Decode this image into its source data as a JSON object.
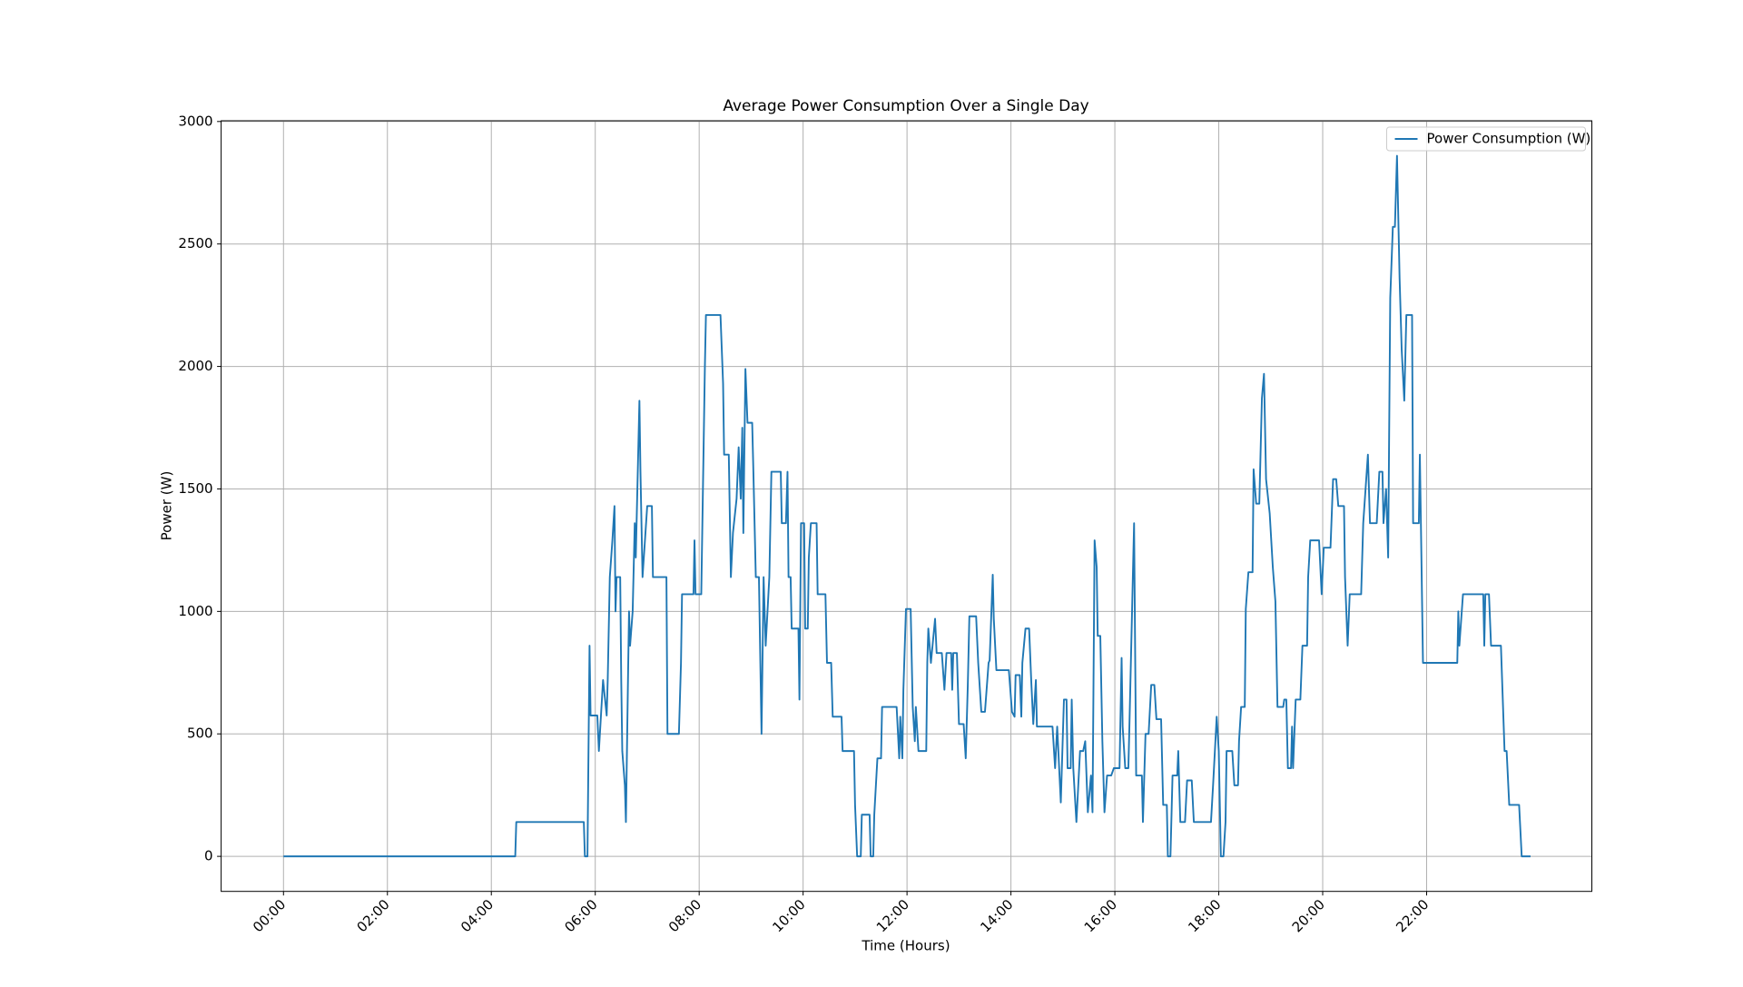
{
  "chart_data": {
    "type": "line",
    "title": "Average Power Consumption Over a Single Day",
    "x_label": "Time (Hours)",
    "y_label": "Power (W)",
    "xlim": [
      -1.2,
      25.18
    ],
    "ylim": [
      -143,
      3003
    ],
    "xticks": [
      {
        "value": 0,
        "label": "00:00"
      },
      {
        "value": 2,
        "label": "02:00"
      },
      {
        "value": 4,
        "label": "04:00"
      },
      {
        "value": 6,
        "label": "06:00"
      },
      {
        "value": 8,
        "label": "08:00"
      },
      {
        "value": 10,
        "label": "10:00"
      },
      {
        "value": 12,
        "label": "12:00"
      },
      {
        "value": 14,
        "label": "14:00"
      },
      {
        "value": 16,
        "label": "16:00"
      },
      {
        "value": 18,
        "label": "18:00"
      },
      {
        "value": 20,
        "label": "20:00"
      },
      {
        "value": 22,
        "label": "22:00"
      }
    ],
    "yticks": [
      0,
      500,
      1000,
      1500,
      2000,
      2500,
      3000
    ],
    "grid": true,
    "legend": "upper right",
    "series": [
      {
        "name": "Power Consumption (W)",
        "color": "#1f77b4",
        "x": [
          0,
          4.46,
          4.48,
          5.78,
          5.8,
          5.85,
          5.87,
          5.89,
          5.91,
          6.04,
          6.07,
          6.11,
          6.15,
          6.22,
          6.24,
          6.28,
          6.33,
          6.37,
          6.39,
          6.41,
          6.48,
          6.5,
          6.52,
          6.57,
          6.59,
          6.63,
          6.65,
          6.67,
          6.72,
          6.76,
          6.78,
          6.85,
          6.87,
          6.91,
          7.0,
          7.09,
          7.11,
          7.37,
          7.39,
          7.61,
          7.65,
          7.67,
          7.89,
          7.91,
          7.93,
          8.04,
          8.11,
          8.13,
          8.41,
          8.46,
          8.48,
          8.57,
          8.61,
          8.65,
          8.72,
          8.76,
          8.8,
          8.83,
          8.85,
          8.89,
          8.93,
          9.02,
          9.04,
          9.09,
          9.15,
          9.2,
          9.24,
          9.28,
          9.35,
          9.39,
          9.57,
          9.59,
          9.67,
          9.7,
          9.72,
          9.76,
          9.78,
          9.91,
          9.93,
          9.96,
          10.02,
          10.04,
          10.09,
          10.11,
          10.15,
          10.26,
          10.28,
          10.43,
          10.46,
          10.54,
          10.57,
          10.74,
          10.76,
          10.98,
          11.0,
          11.04,
          11.11,
          11.13,
          11.28,
          11.3,
          11.35,
          11.37,
          11.43,
          11.5,
          11.52,
          11.8,
          11.85,
          11.87,
          11.91,
          11.93,
          11.98,
          12.07,
          12.11,
          12.15,
          12.17,
          12.22,
          12.37,
          12.39,
          12.41,
          12.46,
          12.54,
          12.57,
          12.67,
          12.72,
          12.76,
          12.85,
          12.87,
          12.89,
          12.96,
          13.0,
          13.09,
          13.13,
          13.17,
          13.2,
          13.33,
          13.37,
          13.43,
          13.5,
          13.57,
          13.59,
          13.65,
          13.67,
          13.72,
          13.96,
          14.02,
          14.07,
          14.09,
          14.17,
          14.2,
          14.22,
          14.28,
          14.35,
          14.39,
          14.43,
          14.48,
          14.5,
          14.8,
          14.85,
          14.89,
          14.96,
          15.02,
          15.07,
          15.09,
          15.15,
          15.17,
          15.2,
          15.26,
          15.33,
          15.39,
          15.43,
          15.48,
          15.54,
          15.57,
          15.61,
          15.65,
          15.67,
          15.72,
          15.76,
          15.8,
          15.85,
          15.93,
          15.98,
          16.09,
          16.13,
          16.15,
          16.2,
          16.26,
          16.28,
          16.37,
          16.41,
          16.52,
          16.54,
          16.59,
          16.65,
          16.7,
          16.76,
          16.8,
          16.89,
          16.93,
          17.0,
          17.02,
          17.07,
          17.11,
          17.2,
          17.22,
          17.26,
          17.35,
          17.39,
          17.48,
          17.52,
          17.85,
          17.89,
          17.96,
          18.0,
          18.04,
          18.09,
          18.13,
          18.15,
          18.26,
          18.3,
          18.37,
          18.39,
          18.43,
          18.5,
          18.52,
          18.57,
          18.65,
          18.67,
          18.72,
          18.78,
          18.83,
          18.87,
          18.91,
          18.98,
          19.04,
          19.09,
          19.13,
          19.24,
          19.26,
          19.3,
          19.33,
          19.39,
          19.41,
          19.43,
          19.48,
          19.57,
          19.61,
          19.7,
          19.72,
          19.76,
          19.93,
          19.98,
          20.02,
          20.15,
          20.2,
          20.26,
          20.3,
          20.41,
          20.43,
          20.48,
          20.52,
          20.74,
          20.78,
          20.87,
          20.91,
          21.04,
          21.09,
          21.15,
          21.17,
          21.22,
          21.26,
          21.3,
          21.35,
          21.39,
          21.43,
          21.48,
          21.52,
          21.57,
          21.61,
          21.72,
          21.74,
          21.85,
          21.87,
          21.89,
          21.93,
          22.59,
          22.61,
          22.63,
          22.7,
          23.09,
          23.11,
          23.13,
          23.2,
          23.24,
          23.43,
          23.5,
          23.54,
          23.59,
          23.78,
          23.83,
          24.0
        ],
        "values": [
          0,
          0,
          140,
          140,
          0,
          0,
          430,
          860,
          575,
          575,
          430,
          575,
          720,
          575,
          720,
          1140,
          1290,
          1430,
          1000,
          1140,
          1140,
          720,
          430,
          290,
          140,
          720,
          1000,
          860,
          1000,
          1360,
          1220,
          1860,
          1570,
          1140,
          1430,
          1430,
          1140,
          1140,
          500,
          500,
          790,
          1070,
          1070,
          1290,
          1070,
          1070,
          2000,
          2210,
          2210,
          1930,
          1640,
          1640,
          1140,
          1320,
          1460,
          1670,
          1460,
          1750,
          1320,
          1990,
          1770,
          1770,
          1600,
          1140,
          1140,
          500,
          1140,
          860,
          1140,
          1570,
          1570,
          1360,
          1360,
          1570,
          1140,
          1140,
          930,
          930,
          640,
          1360,
          1360,
          930,
          930,
          1220,
          1360,
          1360,
          1070,
          1070,
          790,
          790,
          570,
          570,
          430,
          430,
          210,
          0,
          0,
          170,
          170,
          0,
          0,
          170,
          400,
          400,
          610,
          610,
          400,
          570,
          400,
          680,
          1010,
          1010,
          610,
          470,
          610,
          430,
          430,
          790,
          930,
          790,
          970,
          830,
          830,
          680,
          830,
          830,
          680,
          830,
          830,
          540,
          540,
          400,
          700,
          980,
          980,
          790,
          590,
          590,
          790,
          800,
          1150,
          970,
          760,
          760,
          590,
          570,
          740,
          740,
          570,
          790,
          930,
          930,
          720,
          540,
          720,
          530,
          530,
          360,
          530,
          220,
          640,
          640,
          360,
          360,
          640,
          360,
          140,
          430,
          430,
          470,
          180,
          330,
          180,
          1290,
          1180,
          900,
          900,
          470,
          180,
          330,
          330,
          360,
          360,
          810,
          530,
          360,
          360,
          530,
          1360,
          330,
          330,
          140,
          500,
          500,
          700,
          700,
          560,
          560,
          210,
          210,
          0,
          0,
          330,
          330,
          430,
          140,
          140,
          310,
          310,
          140,
          140,
          290,
          570,
          430,
          0,
          0,
          140,
          430,
          430,
          290,
          290,
          470,
          610,
          610,
          1010,
          1160,
          1160,
          1580,
          1440,
          1440,
          1870,
          1970,
          1540,
          1400,
          1180,
          1040,
          610,
          610,
          640,
          640,
          360,
          360,
          530,
          360,
          640,
          640,
          860,
          860,
          1140,
          1290,
          1290,
          1070,
          1260,
          1260,
          1540,
          1540,
          1430,
          1430,
          1140,
          860,
          1070,
          1070,
          1360,
          1640,
          1360,
          1360,
          1570,
          1570,
          1360,
          1500,
          1220,
          2280,
          2570,
          2570,
          2860,
          2360,
          2070,
          1860,
          2210,
          2210,
          1360,
          1360,
          1640,
          1360,
          790,
          790,
          1000,
          860,
          1070,
          1070,
          860,
          1070,
          1070,
          860,
          860,
          430,
          430,
          210,
          210,
          0,
          0
        ]
      }
    ]
  }
}
